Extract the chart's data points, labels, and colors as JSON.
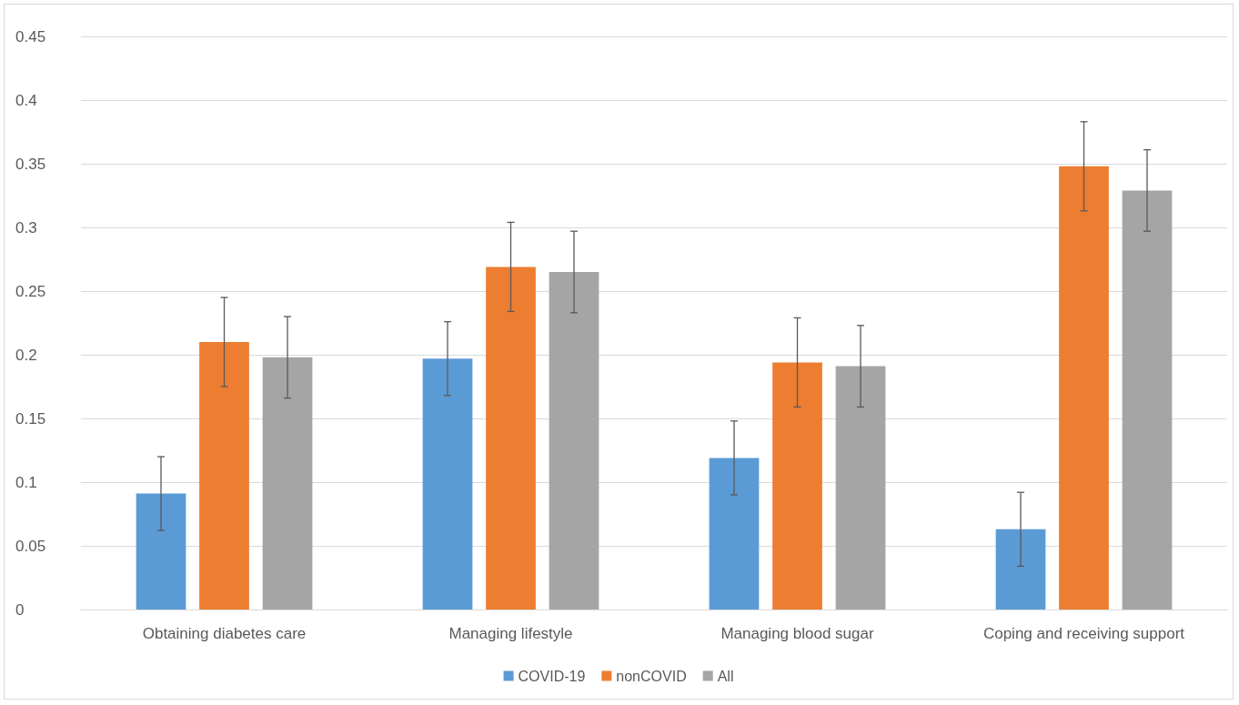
{
  "chart_data": {
    "type": "bar",
    "categories": [
      "Obtaining diabetes care",
      "Managing lifestyle",
      "Managing blood sugar",
      "Coping and receiving support"
    ],
    "series": [
      {
        "name": "COVID-19",
        "color": "#5b9bd5",
        "values": [
          0.091,
          0.197,
          0.119,
          0.063
        ],
        "errors": [
          0.029,
          0.029,
          0.029,
          0.029
        ]
      },
      {
        "name": "nonCOVID",
        "color": "#ed7d31",
        "values": [
          0.21,
          0.269,
          0.194,
          0.348
        ],
        "errors": [
          0.035,
          0.035,
          0.035,
          0.035
        ]
      },
      {
        "name": "All",
        "color": "#a5a5a5",
        "values": [
          0.198,
          0.265,
          0.191,
          0.329
        ],
        "errors": [
          0.032,
          0.032,
          0.032,
          0.032
        ]
      }
    ],
    "ylim": [
      0,
      0.45
    ],
    "yticks": [
      0,
      0.05,
      0.1,
      0.15,
      0.2,
      0.25,
      0.3,
      0.35,
      0.4,
      0.45
    ],
    "grid": "y",
    "legend": "bottom"
  }
}
